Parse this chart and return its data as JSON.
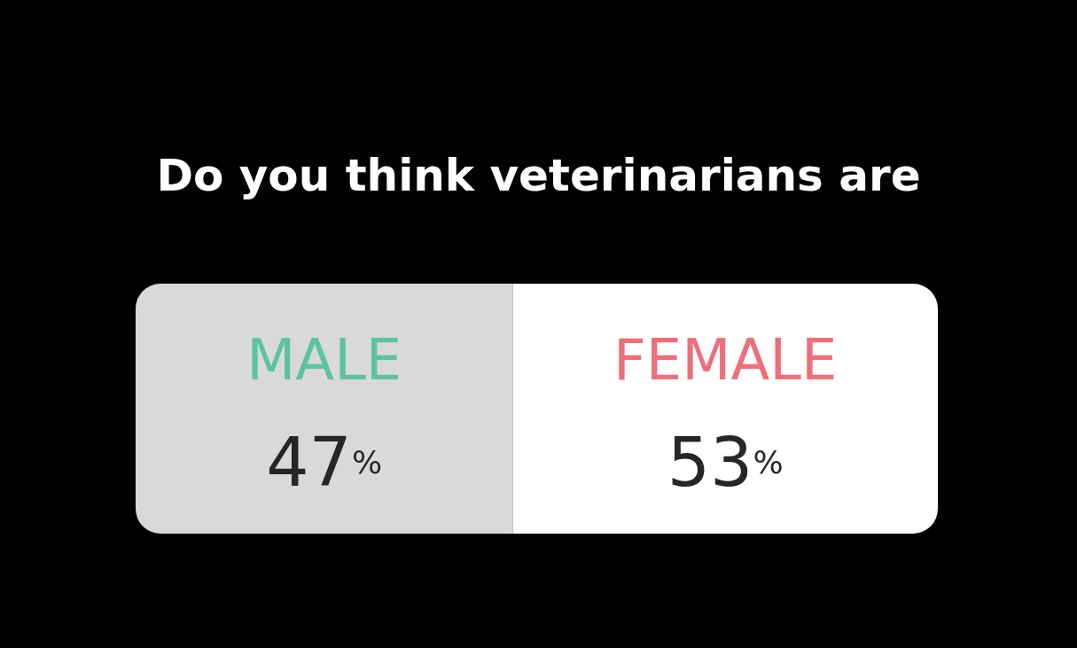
{
  "chart_data": {
    "type": "bar",
    "title": "Do you think veterinarians are",
    "orientation": "horizontal",
    "stacked": true,
    "categories": [
      null
    ],
    "series": [
      {
        "name": "MALE",
        "color": "#d9d9d9",
        "values": [
          47
        ],
        "value_labels": [
          "47%"
        ]
      },
      {
        "name": "FEMALE",
        "color": "#ffffff",
        "values": [
          53
        ],
        "value_labels": [
          "53%"
        ]
      }
    ]
  }
}
